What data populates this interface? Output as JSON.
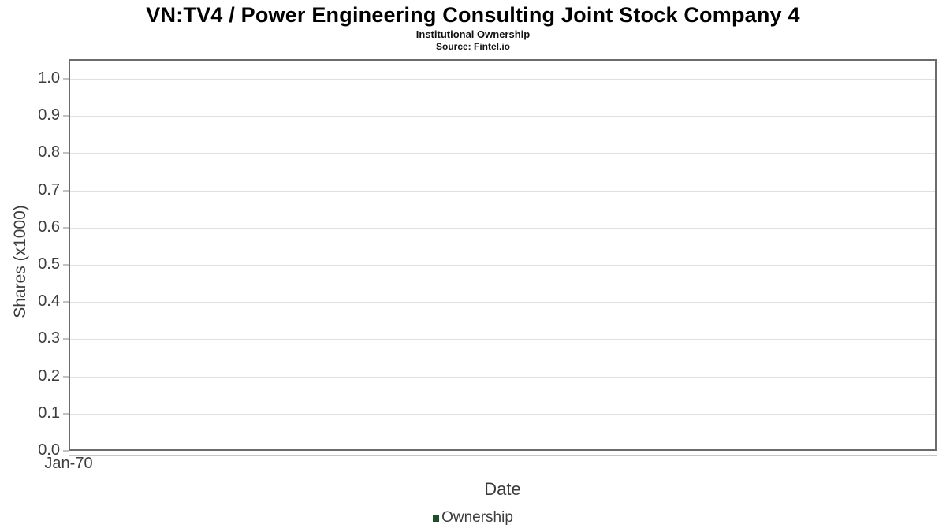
{
  "header": {
    "title": "VN:TV4 / Power Engineering Consulting Joint Stock Company 4",
    "subtitle": "Institutional Ownership",
    "source": "Source: Fintel.io"
  },
  "chart_data": {
    "type": "line",
    "title": "VN:TV4 / Power Engineering Consulting Joint Stock Company 4",
    "subtitle": "Institutional Ownership",
    "source_note": "Source: Fintel.io",
    "xlabel": "Date",
    "ylabel": "Shares (x1000)",
    "x_tick_labels": [
      "Jan-70"
    ],
    "y_tick_labels": [
      "0.0",
      "0.1",
      "0.2",
      "0.3",
      "0.4",
      "0.5",
      "0.6",
      "0.7",
      "0.8",
      "0.9",
      "1.0"
    ],
    "y_ticks": [
      0.0,
      0.1,
      0.2,
      0.3,
      0.4,
      0.5,
      0.6,
      0.7,
      0.8,
      0.9,
      1.0
    ],
    "ylim": [
      0.0,
      1.053
    ],
    "grid": true,
    "legend": {
      "position": "bottom",
      "entries": [
        {
          "label": "Ownership",
          "color": "#1e4e2a"
        }
      ]
    },
    "series": [
      {
        "name": "Ownership",
        "x": [],
        "values": []
      }
    ]
  },
  "colors": {
    "background": "#ffffff",
    "plot_border": "#6b6b6b",
    "gridline": "#e0e0e0",
    "tick": "#c2c2c2",
    "axis_text": "#3d3d3d",
    "title_text": "#000000",
    "legend_marker": "#1e4e2a"
  }
}
